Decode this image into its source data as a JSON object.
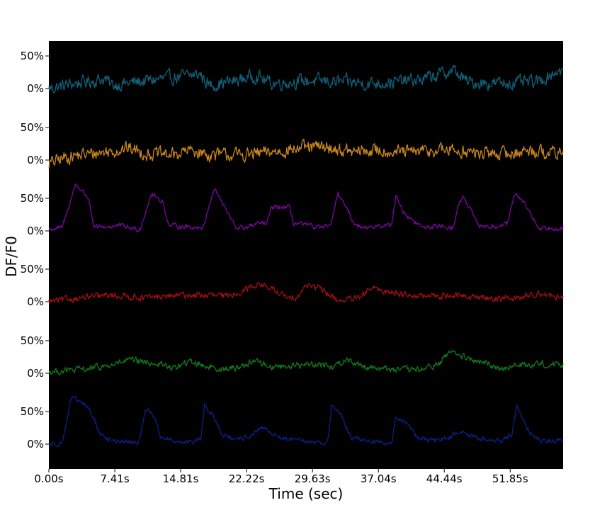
{
  "chart_data": {
    "type": "line",
    "title": "",
    "xlabel": "Time (sec)",
    "ylabel": "DF/F0",
    "xlim": [
      0,
      57.8
    ],
    "x_ticks": [
      {
        "value": 0.0,
        "label": "0.00s"
      },
      {
        "value": 7.41,
        "label": "7.41s"
      },
      {
        "value": 14.81,
        "label": "14.81s"
      },
      {
        "value": 22.22,
        "label": "22.22s"
      },
      {
        "value": 29.63,
        "label": "29.63s"
      },
      {
        "value": 37.04,
        "label": "37.04s"
      },
      {
        "value": 44.44,
        "label": "44.44s"
      },
      {
        "value": 51.85,
        "label": "51.85s"
      }
    ],
    "background": "#000000",
    "grid": false,
    "legend": "none",
    "trace_tick_labels": [
      "50%",
      "0%"
    ],
    "trace_ylim": [
      -35,
      70
    ],
    "series": [
      {
        "color": "#0f5f77",
        "baseline": 0,
        "amplitude": 16,
        "keypoints": [
          [
            0,
            0
          ],
          [
            3,
            8
          ],
          [
            6.3,
            15
          ],
          [
            7,
            5
          ],
          [
            11,
            12
          ],
          [
            17,
            22
          ],
          [
            18,
            5
          ],
          [
            21,
            12
          ],
          [
            23.3,
            20
          ],
          [
            25,
            8
          ],
          [
            29,
            12
          ],
          [
            33,
            10
          ],
          [
            36,
            8
          ],
          [
            39,
            10
          ],
          [
            42,
            14
          ],
          [
            45.5,
            28
          ],
          [
            47,
            10
          ],
          [
            50,
            8
          ],
          [
            55,
            10
          ],
          [
            57.2,
            28
          ],
          [
            57.8,
            26
          ]
        ]
      },
      {
        "color": "#c8861c",
        "baseline": 0,
        "amplitude": 16,
        "keypoints": [
          [
            0,
            -6
          ],
          [
            2,
            5
          ],
          [
            5,
            10
          ],
          [
            9,
            18
          ],
          [
            11,
            10
          ],
          [
            14,
            8
          ],
          [
            16,
            15
          ],
          [
            18,
            8
          ],
          [
            22,
            8
          ],
          [
            25,
            12
          ],
          [
            28,
            18
          ],
          [
            31,
            20
          ],
          [
            34,
            12
          ],
          [
            37,
            15
          ],
          [
            40,
            12
          ],
          [
            44,
            15
          ],
          [
            46,
            15
          ],
          [
            48,
            10
          ],
          [
            52,
            10
          ],
          [
            54,
            15
          ],
          [
            57.8,
            10
          ]
        ]
      },
      {
        "color": "#7b05a4",
        "baseline": 0,
        "amplitude": 6,
        "keypoints": [
          [
            0,
            2
          ],
          [
            1.5,
            5
          ],
          [
            3,
            72
          ],
          [
            4.5,
            50
          ],
          [
            5,
            5
          ],
          [
            8,
            8
          ],
          [
            10,
            2
          ],
          [
            10.3,
            5
          ],
          [
            11.5,
            57
          ],
          [
            12.8,
            45
          ],
          [
            13.5,
            8
          ],
          [
            16,
            6
          ],
          [
            17.4,
            5
          ],
          [
            17.8,
            30
          ],
          [
            18.6,
            66
          ],
          [
            20,
            30
          ],
          [
            21,
            5
          ],
          [
            22,
            5
          ],
          [
            24,
            12
          ],
          [
            24.5,
            10
          ],
          [
            25,
            36
          ],
          [
            27,
            36
          ],
          [
            27.5,
            12
          ],
          [
            30,
            6
          ],
          [
            31.5,
            5
          ],
          [
            32.1,
            30
          ],
          [
            32.5,
            60
          ],
          [
            33.6,
            30
          ],
          [
            34.5,
            8
          ],
          [
            37,
            6
          ],
          [
            38.5,
            10
          ],
          [
            39,
            55
          ],
          [
            40,
            25
          ],
          [
            42,
            5
          ],
          [
            44,
            8
          ],
          [
            45.5,
            5
          ],
          [
            46,
            40
          ],
          [
            46.5,
            52
          ],
          [
            47.5,
            30
          ],
          [
            48.2,
            8
          ],
          [
            50,
            6
          ],
          [
            51.5,
            10
          ],
          [
            52.5,
            60
          ],
          [
            54,
            30
          ],
          [
            55,
            5
          ],
          [
            57.8,
            5
          ]
        ]
      },
      {
        "color": "#a30e0e",
        "baseline": 0,
        "amplitude": 8,
        "keypoints": [
          [
            0,
            0
          ],
          [
            3,
            5
          ],
          [
            7,
            10
          ],
          [
            11,
            6
          ],
          [
            15,
            10
          ],
          [
            18,
            10
          ],
          [
            20,
            8
          ],
          [
            22,
            18
          ],
          [
            23.5,
            28
          ],
          [
            25,
            20
          ],
          [
            27,
            4
          ],
          [
            28,
            10
          ],
          [
            29.2,
            28
          ],
          [
            31,
            15
          ],
          [
            32.5,
            2
          ],
          [
            35,
            5
          ],
          [
            36,
            20
          ],
          [
            39,
            14
          ],
          [
            42,
            8
          ],
          [
            45,
            10
          ],
          [
            47,
            8
          ],
          [
            50,
            5
          ],
          [
            53,
            6
          ],
          [
            55,
            14
          ],
          [
            57.8,
            5
          ]
        ]
      },
      {
        "color": "#117a18",
        "baseline": 0,
        "amplitude": 8,
        "keypoints": [
          [
            0,
            2
          ],
          [
            3,
            5
          ],
          [
            5,
            8
          ],
          [
            7,
            12
          ],
          [
            9,
            20
          ],
          [
            12,
            15
          ],
          [
            14,
            8
          ],
          [
            16,
            18
          ],
          [
            18,
            10
          ],
          [
            20,
            6
          ],
          [
            22,
            12
          ],
          [
            23,
            20
          ],
          [
            25,
            10
          ],
          [
            28,
            12
          ],
          [
            30,
            15
          ],
          [
            32,
            10
          ],
          [
            33.5,
            22
          ],
          [
            35,
            12
          ],
          [
            37,
            8
          ],
          [
            40,
            5
          ],
          [
            42,
            6
          ],
          [
            44,
            15
          ],
          [
            45,
            35
          ],
          [
            47,
            22
          ],
          [
            49,
            15
          ],
          [
            51,
            8
          ],
          [
            53,
            12
          ],
          [
            55,
            15
          ],
          [
            57.8,
            12
          ]
        ]
      },
      {
        "color": "#0a1f8a",
        "baseline": 0,
        "amplitude": 6,
        "keypoints": [
          [
            0,
            0
          ],
          [
            1.5,
            2
          ],
          [
            2.5,
            70
          ],
          [
            3.5,
            65
          ],
          [
            4.5,
            55
          ],
          [
            5.8,
            15
          ],
          [
            7,
            5
          ],
          [
            10,
            2
          ],
          [
            10.3,
            8
          ],
          [
            10.8,
            55
          ],
          [
            11.8,
            45
          ],
          [
            12.5,
            12
          ],
          [
            14,
            5
          ],
          [
            16,
            2
          ],
          [
            17.1,
            8
          ],
          [
            17.5,
            60
          ],
          [
            18.5,
            42
          ],
          [
            19.5,
            15
          ],
          [
            21,
            5
          ],
          [
            23,
            15
          ],
          [
            24,
            25
          ],
          [
            26,
            10
          ],
          [
            28,
            5
          ],
          [
            31,
            2
          ],
          [
            31.4,
            10
          ],
          [
            31.8,
            60
          ],
          [
            32.8,
            45
          ],
          [
            34,
            10
          ],
          [
            36,
            5
          ],
          [
            38,
            2
          ],
          [
            38.6,
            5
          ],
          [
            39,
            42
          ],
          [
            40.5,
            30
          ],
          [
            41.5,
            8
          ],
          [
            43,
            5
          ],
          [
            45,
            10
          ],
          [
            46,
            20
          ],
          [
            48,
            10
          ],
          [
            51,
            5
          ],
          [
            52,
            15
          ],
          [
            52.6,
            58
          ],
          [
            54,
            20
          ],
          [
            55.4,
            5
          ],
          [
            57.8,
            5
          ]
        ]
      }
    ]
  }
}
